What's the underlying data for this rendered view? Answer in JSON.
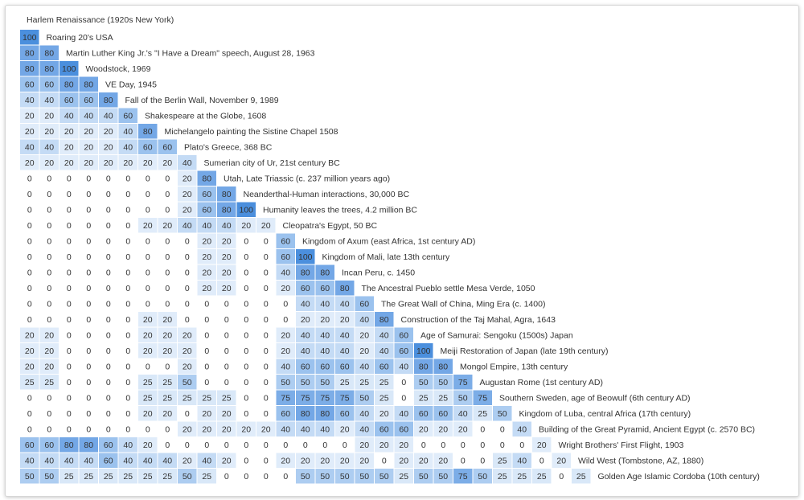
{
  "colors": {
    "0": "#ffffff",
    "20": "#e0ecfa",
    "25": "#d9e8f8",
    "40": "#c4dbf5",
    "50": "#adcdf1",
    "60": "#9bc2ee",
    "75": "#7cade7",
    "80": "#73a7e6",
    "100": "#4b8fdd",
    "text_dark": "#333333",
    "text_light": "#ffffff"
  },
  "chart_data": {
    "type": "heatmap",
    "title": "",
    "top_label": "Harlem Renaissance (1920s New York)",
    "rows": [
      {
        "label": "Roaring 20's USA",
        "values": [
          100
        ]
      },
      {
        "label": "Martin Luther King Jr.'s \"I Have a Dream\" speech, August 28, 1963",
        "values": [
          80,
          80
        ]
      },
      {
        "label": "Woodstock, 1969",
        "values": [
          80,
          80,
          100
        ]
      },
      {
        "label": "VE Day, 1945",
        "values": [
          60,
          60,
          80,
          80
        ]
      },
      {
        "label": "Fall of the Berlin Wall, November 9, 1989",
        "values": [
          40,
          40,
          60,
          60,
          80
        ]
      },
      {
        "label": "Shakespeare at the Globe, 1608",
        "values": [
          20,
          20,
          40,
          40,
          40,
          60
        ]
      },
      {
        "label": "Michelangelo painting the Sistine Chapel 1508",
        "values": [
          20,
          20,
          20,
          20,
          20,
          40,
          80
        ]
      },
      {
        "label": "Plato's Greece, 368 BC",
        "values": [
          40,
          40,
          20,
          20,
          20,
          40,
          60,
          60
        ]
      },
      {
        "label": "Sumerian city of Ur, 21st century BC",
        "values": [
          20,
          20,
          20,
          20,
          20,
          20,
          20,
          20,
          40
        ]
      },
      {
        "label": "Utah, Late Triassic (c. 237 million years ago)",
        "values": [
          0,
          0,
          0,
          0,
          0,
          0,
          0,
          0,
          20,
          80
        ]
      },
      {
        "label": "Neanderthal-Human interactions, 30,000 BC",
        "values": [
          0,
          0,
          0,
          0,
          0,
          0,
          0,
          0,
          20,
          60,
          80
        ]
      },
      {
        "label": "Humanity leaves the trees, 4.2 million BC",
        "values": [
          0,
          0,
          0,
          0,
          0,
          0,
          0,
          0,
          20,
          60,
          80,
          100
        ]
      },
      {
        "label": "Cleopatra's Egypt, 50 BC",
        "values": [
          0,
          0,
          0,
          0,
          0,
          0,
          20,
          20,
          40,
          40,
          40,
          20,
          20
        ]
      },
      {
        "label": "Kingdom of Axum (east Africa, 1st century AD)",
        "values": [
          0,
          0,
          0,
          0,
          0,
          0,
          0,
          0,
          0,
          20,
          20,
          0,
          0,
          60
        ]
      },
      {
        "label": "Kingdom of Mali, late 13th century",
        "values": [
          0,
          0,
          0,
          0,
          0,
          0,
          0,
          0,
          0,
          20,
          20,
          0,
          0,
          60,
          100
        ]
      },
      {
        "label": "Incan Peru, c. 1450",
        "values": [
          0,
          0,
          0,
          0,
          0,
          0,
          0,
          0,
          0,
          20,
          20,
          0,
          0,
          40,
          80,
          80
        ]
      },
      {
        "label": "The Ancestral Pueblo settle Mesa Verde, 1050",
        "values": [
          0,
          0,
          0,
          0,
          0,
          0,
          0,
          0,
          0,
          20,
          20,
          0,
          0,
          20,
          60,
          60,
          80
        ]
      },
      {
        "label": "The Great Wall of China, Ming Era (c. 1400)",
        "values": [
          0,
          0,
          0,
          0,
          0,
          0,
          0,
          0,
          0,
          0,
          0,
          0,
          0,
          0,
          40,
          40,
          40,
          60
        ]
      },
      {
        "label": "Construction of the Taj Mahal, Agra, 1643",
        "values": [
          0,
          0,
          0,
          0,
          0,
          0,
          20,
          20,
          0,
          0,
          0,
          0,
          0,
          0,
          20,
          20,
          20,
          40,
          80
        ]
      },
      {
        "label": "Age of Samurai: Sengoku (1500s) Japan",
        "values": [
          20,
          20,
          0,
          0,
          0,
          0,
          20,
          20,
          20,
          0,
          0,
          0,
          0,
          20,
          40,
          40,
          40,
          20,
          40,
          60
        ]
      },
      {
        "label": "Meiji Restoration of Japan (late 19th century)",
        "values": [
          20,
          20,
          0,
          0,
          0,
          0,
          20,
          20,
          20,
          0,
          0,
          0,
          0,
          20,
          40,
          40,
          40,
          20,
          40,
          60,
          100
        ]
      },
      {
        "label": "Mongol Empire, 13th century",
        "values": [
          20,
          20,
          0,
          0,
          0,
          0,
          0,
          0,
          20,
          0,
          0,
          0,
          0,
          40,
          60,
          60,
          60,
          40,
          60,
          40,
          80,
          80
        ]
      },
      {
        "label": "Augustan Rome (1st century AD)",
        "values": [
          25,
          25,
          0,
          0,
          0,
          0,
          25,
          25,
          50,
          0,
          0,
          0,
          0,
          50,
          50,
          50,
          25,
          25,
          25,
          0,
          50,
          50,
          75
        ]
      },
      {
        "label": "Southern Sweden, age of Beowulf (6th century AD)",
        "values": [
          0,
          0,
          0,
          0,
          0,
          0,
          25,
          25,
          25,
          25,
          25,
          0,
          0,
          75,
          75,
          75,
          75,
          50,
          25,
          0,
          25,
          25,
          50,
          75
        ]
      },
      {
        "label": "Kingdom of Luba, central Africa (17th century)",
        "values": [
          0,
          0,
          0,
          0,
          0,
          0,
          20,
          20,
          0,
          20,
          20,
          0,
          0,
          60,
          80,
          80,
          60,
          40,
          20,
          40,
          60,
          60,
          40,
          25,
          50
        ]
      },
      {
        "label": "Building of the Great Pyramid, Ancient Egypt (c. 2570 BC)",
        "values": [
          0,
          0,
          0,
          0,
          0,
          0,
          0,
          0,
          20,
          20,
          20,
          20,
          20,
          40,
          40,
          40,
          20,
          40,
          60,
          60,
          20,
          20,
          20,
          0,
          0,
          40
        ]
      },
      {
        "label": "Wright Brothers' First Flight, 1903",
        "values": [
          60,
          60,
          80,
          80,
          60,
          40,
          20,
          0,
          0,
          0,
          0,
          0,
          0,
          0,
          0,
          0,
          0,
          20,
          20,
          20,
          0,
          0,
          0,
          0,
          0,
          0,
          20
        ]
      },
      {
        "label": "Wild West (Tombstone, AZ, 1880)",
        "values": [
          40,
          40,
          40,
          40,
          60,
          40,
          40,
          40,
          20,
          40,
          20,
          0,
          0,
          20,
          20,
          20,
          20,
          20,
          0,
          20,
          20,
          20,
          0,
          0,
          25,
          40,
          0,
          20
        ]
      },
      {
        "label": "Golden Age Islamic Cordoba (10th century)",
        "values": [
          50,
          50,
          25,
          25,
          25,
          25,
          25,
          25,
          50,
          25,
          0,
          0,
          0,
          0,
          50,
          50,
          50,
          50,
          50,
          25,
          50,
          50,
          75,
          50,
          25,
          25,
          25,
          0,
          25
        ]
      }
    ]
  }
}
